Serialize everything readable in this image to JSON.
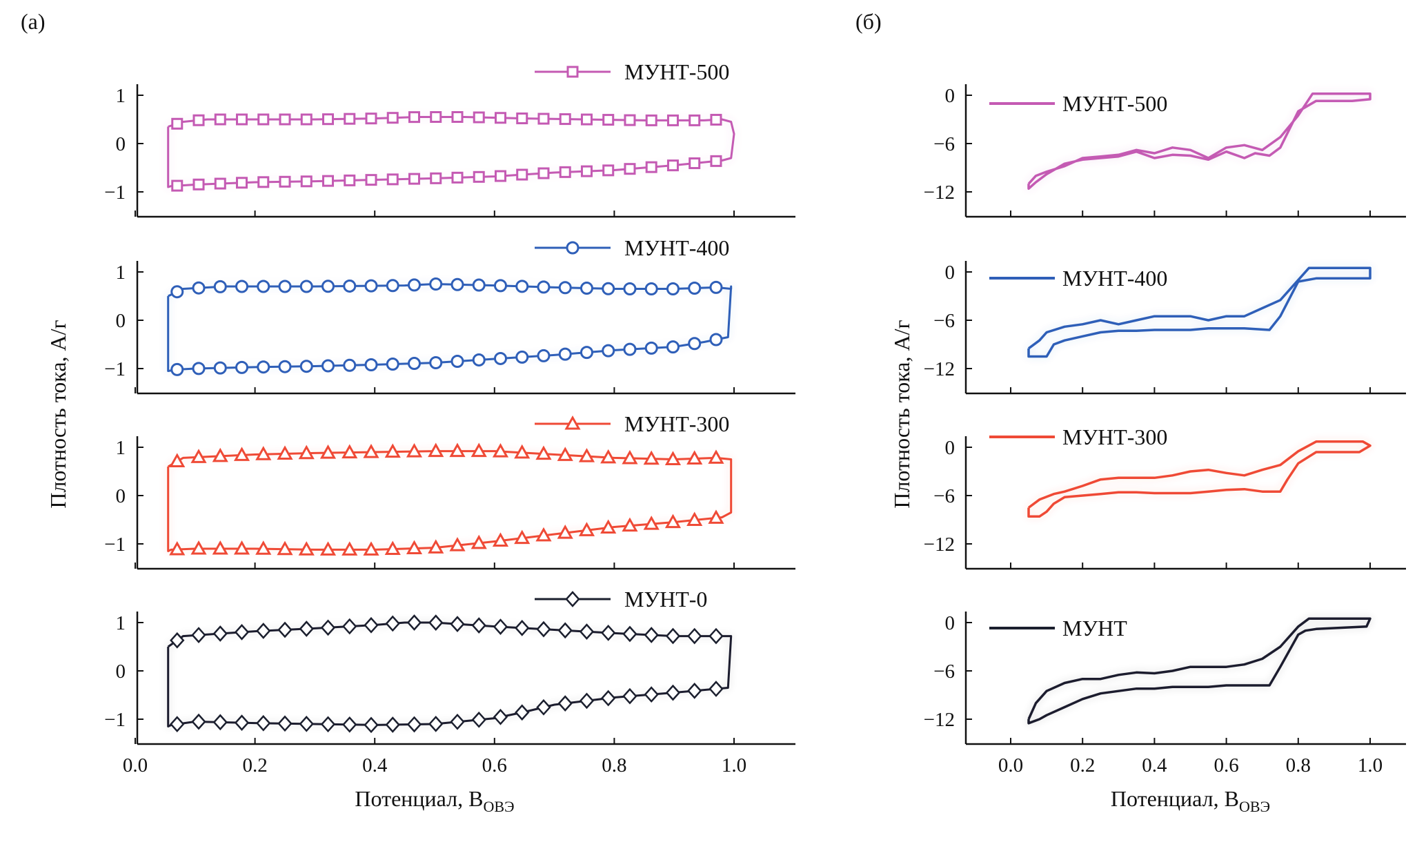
{
  "figure": {
    "panel_a_label": "(а)",
    "panel_b_label": "(б)"
  },
  "chart_data": [
    {
      "id": "a",
      "type": "line",
      "title": "(а)",
      "xlabel": "Потенциал, В",
      "xlabel_sub": "ОВЭ",
      "ylabel": "Плотность тока, А/г",
      "xlim": [
        0.0,
        1.1
      ],
      "xticks": [
        0.0,
        0.2,
        0.4,
        0.6,
        0.8,
        1.0
      ],
      "xtick_labels": [
        "0.0",
        "0.2",
        "0.4",
        "0.6",
        "0.8",
        "1.0"
      ],
      "grid": false,
      "legend_position": "top-right",
      "subplots": [
        {
          "name": "МУНТ-500",
          "color": "#c45ab3",
          "marker": "square",
          "ylim": [
            -1.5,
            1.1
          ],
          "yticks": [
            1,
            0,
            -1
          ],
          "ytick_labels": [
            "1",
            "0",
            "−1"
          ],
          "forward": {
            "x": [
              0.055,
              0.08,
              0.12,
              0.2,
              0.3,
              0.4,
              0.47,
              0.55,
              0.65,
              0.75,
              0.85,
              0.95,
              0.98,
              0.995
            ],
            "y": [
              0.35,
              0.45,
              0.5,
              0.5,
              0.5,
              0.52,
              0.55,
              0.55,
              0.52,
              0.5,
              0.48,
              0.48,
              0.5,
              0.45
            ]
          },
          "reverse": {
            "x": [
              1.0,
              0.995,
              0.98,
              0.9,
              0.8,
              0.7,
              0.6,
              0.5,
              0.4,
              0.3,
              0.2,
              0.1,
              0.06,
              0.055
            ],
            "y": [
              0.2,
              -0.3,
              -0.35,
              -0.45,
              -0.55,
              -0.6,
              -0.68,
              -0.72,
              -0.75,
              -0.78,
              -0.8,
              -0.85,
              -0.88,
              -0.9
            ]
          },
          "marker_spacing": 0.036
        },
        {
          "name": "МУНТ-400",
          "color": "#2f5fb8",
          "marker": "circle",
          "ylim": [
            -1.5,
            1.1
          ],
          "yticks": [
            1,
            0,
            -1
          ],
          "ytick_labels": [
            "1",
            "0",
            "−1"
          ],
          "forward": {
            "x": [
              0.055,
              0.08,
              0.15,
              0.3,
              0.45,
              0.5,
              0.6,
              0.7,
              0.8,
              0.9,
              0.97,
              0.995
            ],
            "y": [
              0.5,
              0.65,
              0.7,
              0.7,
              0.72,
              0.75,
              0.72,
              0.68,
              0.65,
              0.65,
              0.68,
              0.65
            ]
          },
          "reverse": {
            "x": [
              0.995,
              0.99,
              0.95,
              0.9,
              0.8,
              0.7,
              0.6,
              0.5,
              0.4,
              0.3,
              0.2,
              0.1,
              0.07,
              0.055
            ],
            "y": [
              0.7,
              -0.35,
              -0.45,
              -0.55,
              -0.62,
              -0.72,
              -0.8,
              -0.88,
              -0.92,
              -0.95,
              -0.97,
              -1.0,
              -1.02,
              -1.05
            ]
          },
          "marker_spacing": 0.036
        },
        {
          "name": "МУНТ-300",
          "color": "#ef4a36",
          "marker": "triangle",
          "ylim": [
            -1.5,
            1.1
          ],
          "yticks": [
            1,
            0,
            -1
          ],
          "ytick_labels": [
            "1",
            "0",
            "−1"
          ],
          "forward": {
            "x": [
              0.055,
              0.08,
              0.2,
              0.3,
              0.4,
              0.5,
              0.6,
              0.7,
              0.8,
              0.9,
              0.97,
              0.995
            ],
            "y": [
              0.6,
              0.78,
              0.85,
              0.88,
              0.9,
              0.92,
              0.92,
              0.85,
              0.78,
              0.75,
              0.78,
              0.75
            ]
          },
          "reverse": {
            "x": [
              0.995,
              0.98,
              0.9,
              0.8,
              0.7,
              0.6,
              0.5,
              0.4,
              0.3,
              0.2,
              0.1,
              0.06,
              0.055
            ],
            "y": [
              -0.35,
              -0.45,
              -0.55,
              -0.65,
              -0.8,
              -0.95,
              -1.08,
              -1.12,
              -1.12,
              -1.1,
              -1.1,
              -1.12,
              -1.15
            ]
          },
          "marker_spacing": 0.036
        },
        {
          "name": "МУНТ-0",
          "color": "#1b1f2e",
          "marker": "diamond",
          "ylim": [
            -1.5,
            1.1
          ],
          "yticks": [
            1,
            0,
            -1
          ],
          "ytick_labels": [
            "1",
            "0",
            "−1"
          ],
          "forward": {
            "x": [
              0.055,
              0.08,
              0.2,
              0.3,
              0.4,
              0.45,
              0.5,
              0.6,
              0.7,
              0.8,
              0.9,
              0.97,
              0.995
            ],
            "y": [
              0.5,
              0.72,
              0.82,
              0.88,
              0.95,
              1.0,
              1.0,
              0.92,
              0.85,
              0.78,
              0.72,
              0.72,
              0.72
            ]
          },
          "reverse": {
            "x": [
              0.995,
              0.99,
              0.9,
              0.8,
              0.7,
              0.65,
              0.6,
              0.5,
              0.4,
              0.3,
              0.2,
              0.1,
              0.06,
              0.055
            ],
            "y": [
              0.72,
              -0.35,
              -0.45,
              -0.55,
              -0.7,
              -0.85,
              -0.98,
              -1.1,
              -1.12,
              -1.1,
              -1.08,
              -1.05,
              -1.12,
              -1.15
            ]
          },
          "marker_spacing": 0.036
        }
      ]
    },
    {
      "id": "b",
      "type": "line",
      "title": "(б)",
      "xlabel": "Потенциал, В",
      "xlabel_sub": "ОВЭ",
      "ylabel": "Плотность тока, А/г",
      "xlim": [
        -0.1,
        1.1
      ],
      "xticks": [
        0.0,
        0.2,
        0.4,
        0.6,
        0.8,
        1.0
      ],
      "xtick_labels": [
        "0.0",
        "0.2",
        "0.4",
        "0.6",
        "0.8",
        "1.0"
      ],
      "grid": false,
      "legend_position": "top-left",
      "subplots": [
        {
          "name": "МУНТ-500",
          "color": "#c45ab3",
          "ylim": [
            -15,
            1
          ],
          "yticks": [
            0,
            -6,
            -12
          ],
          "ytick_labels": [
            "0",
            "−6",
            "−12"
          ],
          "upper": {
            "x": [
              0.05,
              0.07,
              0.1,
              0.15,
              0.2,
              0.25,
              0.3,
              0.35,
              0.4,
              0.45,
              0.5,
              0.55,
              0.6,
              0.65,
              0.7,
              0.75,
              0.8,
              0.84,
              1.0,
              1.0
            ],
            "y": [
              -11.0,
              -10.0,
              -9.5,
              -8.8,
              -7.8,
              -7.6,
              -7.4,
              -6.8,
              -7.2,
              -6.5,
              -6.8,
              -7.8,
              -6.5,
              -6.2,
              -6.8,
              -5.2,
              -2.5,
              0.2,
              0.2,
              -0.5
            ]
          },
          "lower": {
            "x": [
              1.0,
              0.95,
              0.85,
              0.8,
              0.75,
              0.72,
              0.68,
              0.65,
              0.6,
              0.55,
              0.5,
              0.45,
              0.4,
              0.35,
              0.3,
              0.25,
              0.2,
              0.15,
              0.1,
              0.07,
              0.05
            ],
            "y": [
              -0.5,
              -0.7,
              -0.7,
              -2.0,
              -6.5,
              -7.5,
              -7.2,
              -7.8,
              -7.0,
              -8.0,
              -7.5,
              -7.4,
              -7.8,
              -7.0,
              -7.6,
              -7.8,
              -8.0,
              -8.5,
              -9.8,
              -10.8,
              -11.6
            ]
          }
        },
        {
          "name": "МУНТ-400",
          "color": "#2f5fb8",
          "ylim": [
            -15,
            1
          ],
          "yticks": [
            0,
            -6,
            -12
          ],
          "ytick_labels": [
            "0",
            "−6",
            "−12"
          ],
          "upper": {
            "x": [
              0.05,
              0.08,
              0.1,
              0.15,
              0.2,
              0.25,
              0.3,
              0.35,
              0.4,
              0.45,
              0.5,
              0.55,
              0.6,
              0.65,
              0.7,
              0.75,
              0.8,
              0.83,
              1.0,
              1.0
            ],
            "y": [
              -9.5,
              -8.5,
              -7.5,
              -6.8,
              -6.5,
              -6.0,
              -6.5,
              -6.0,
              -5.5,
              -5.5,
              -5.5,
              -6.0,
              -5.5,
              -5.5,
              -4.5,
              -3.5,
              -1.0,
              0.5,
              0.5,
              -0.5
            ]
          },
          "lower": {
            "x": [
              1.0,
              0.85,
              0.8,
              0.75,
              0.72,
              0.65,
              0.6,
              0.55,
              0.5,
              0.45,
              0.4,
              0.35,
              0.3,
              0.25,
              0.2,
              0.15,
              0.12,
              0.1,
              0.07,
              0.05
            ],
            "y": [
              -0.8,
              -0.8,
              -1.2,
              -5.5,
              -7.2,
              -7.0,
              -7.0,
              -7.0,
              -7.2,
              -7.2,
              -7.2,
              -7.3,
              -7.3,
              -7.5,
              -8.0,
              -8.5,
              -9.0,
              -10.5,
              -10.5,
              -10.5
            ]
          }
        },
        {
          "name": "МУНТ-300",
          "color": "#ef4a36",
          "ylim": [
            -15,
            1
          ],
          "yticks": [
            0,
            -6,
            -12
          ],
          "ytick_labels": [
            "0",
            "−6",
            "−12"
          ],
          "upper": {
            "x": [
              0.05,
              0.08,
              0.12,
              0.15,
              0.2,
              0.25,
              0.3,
              0.4,
              0.45,
              0.5,
              0.55,
              0.6,
              0.65,
              0.7,
              0.75,
              0.8,
              0.85,
              0.98,
              1.0
            ],
            "y": [
              -7.5,
              -6.5,
              -5.8,
              -5.5,
              -4.8,
              -4.0,
              -3.8,
              -3.8,
              -3.5,
              -3.0,
              -2.8,
              -3.2,
              -3.5,
              -2.8,
              -2.2,
              -0.5,
              0.7,
              0.7,
              0.2
            ]
          },
          "lower": {
            "x": [
              1.0,
              0.97,
              0.85,
              0.8,
              0.77,
              0.75,
              0.7,
              0.65,
              0.6,
              0.55,
              0.5,
              0.45,
              0.4,
              0.35,
              0.3,
              0.25,
              0.2,
              0.15,
              0.12,
              0.1,
              0.08,
              0.05
            ],
            "y": [
              0.2,
              -0.6,
              -0.6,
              -2.0,
              -4.0,
              -5.5,
              -5.5,
              -5.2,
              -5.3,
              -5.5,
              -5.7,
              -5.7,
              -5.7,
              -5.6,
              -5.6,
              -5.8,
              -6.0,
              -6.2,
              -7.0,
              -8.0,
              -8.6,
              -8.6
            ]
          }
        },
        {
          "name": "МУНТ",
          "color": "#1b1f2e",
          "ylim": [
            -15,
            1
          ],
          "yticks": [
            0,
            -6,
            -12
          ],
          "ytick_labels": [
            "0",
            "−6",
            "−12"
          ],
          "upper": {
            "x": [
              0.05,
              0.07,
              0.1,
              0.15,
              0.2,
              0.25,
              0.3,
              0.35,
              0.4,
              0.45,
              0.5,
              0.55,
              0.6,
              0.65,
              0.7,
              0.75,
              0.8,
              0.83,
              1.0
            ],
            "y": [
              -12.0,
              -10.0,
              -8.5,
              -7.5,
              -7.0,
              -7.0,
              -6.5,
              -6.2,
              -6.3,
              -6.0,
              -5.5,
              -5.5,
              -5.5,
              -5.2,
              -4.5,
              -3.0,
              -0.5,
              0.5,
              0.5
            ]
          },
          "lower": {
            "x": [
              1.0,
              0.99,
              0.85,
              0.82,
              0.8,
              0.75,
              0.72,
              0.7,
              0.65,
              0.6,
              0.55,
              0.5,
              0.45,
              0.4,
              0.35,
              0.3,
              0.25,
              0.2,
              0.15,
              0.1,
              0.08,
              0.05
            ],
            "y": [
              0.5,
              -0.5,
              -0.8,
              -1.0,
              -1.5,
              -5.5,
              -7.8,
              -7.8,
              -7.8,
              -7.8,
              -8.0,
              -8.0,
              -8.0,
              -8.2,
              -8.2,
              -8.5,
              -8.8,
              -9.5,
              -10.5,
              -11.5,
              -12.0,
              -12.5
            ]
          }
        }
      ]
    }
  ]
}
